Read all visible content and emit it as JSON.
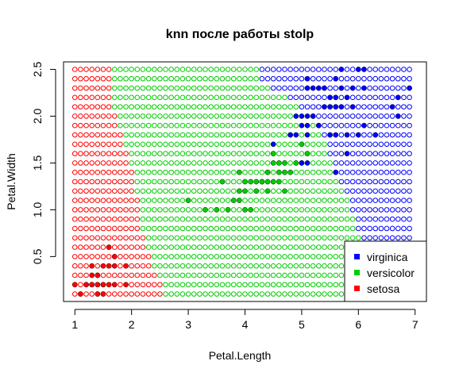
{
  "chart_data": {
    "type": "scatter",
    "title": "knn после работы stolp",
    "xlabel": "Petal.Length",
    "ylabel": "Petal.Width",
    "xlim": [
      0.8,
      7.2
    ],
    "ylim": [
      0.02,
      2.58
    ],
    "x_ticks": [
      1,
      2,
      3,
      4,
      5,
      6,
      7
    ],
    "y_ticks": [
      0.5,
      1.0,
      1.5,
      2.0,
      2.5
    ],
    "x_tick_labels": [
      "1",
      "2",
      "3",
      "4",
      "5",
      "6",
      "7"
    ],
    "y_tick_labels": [
      "0.5",
      "1.0",
      "1.5",
      "2.0",
      "2.5"
    ],
    "grid": false,
    "legend_position": "bottom-right",
    "colors": {
      "setosa": "#ff0000",
      "versicolor": "#00cd00",
      "virginica": "#0000ff"
    },
    "legend": [
      {
        "label": "virginica",
        "color": "#0000ff"
      },
      {
        "label": "versicolor",
        "color": "#00cd00"
      },
      {
        "label": "setosa",
        "color": "#ff0000"
      }
    ],
    "classification_grid": {
      "x_start": 1.0,
      "x_end": 6.9,
      "x_step": 0.1,
      "y_start": 0.1,
      "y_end": 2.5,
      "y_step": 0.1,
      "boundary_setosa_versicolor": [
        {
          "y": 0.1,
          "x": 2.6
        },
        {
          "y": 0.2,
          "x": 2.6
        },
        {
          "y": 0.3,
          "x": 2.5
        },
        {
          "y": 0.4,
          "x": 2.4
        },
        {
          "y": 0.5,
          "x": 2.4
        },
        {
          "y": 0.6,
          "x": 2.3
        },
        {
          "y": 0.7,
          "x": 2.3
        },
        {
          "y": 0.8,
          "x": 2.2
        },
        {
          "y": 0.9,
          "x": 2.2
        },
        {
          "y": 1.0,
          "x": 2.2
        },
        {
          "y": 1.1,
          "x": 2.2
        },
        {
          "y": 1.2,
          "x": 2.1
        },
        {
          "y": 1.3,
          "x": 2.1
        },
        {
          "y": 1.4,
          "x": 2.1
        },
        {
          "y": 1.5,
          "x": 2.0
        },
        {
          "y": 1.6,
          "x": 2.0
        },
        {
          "y": 1.7,
          "x": 1.9
        },
        {
          "y": 1.8,
          "x": 1.9
        },
        {
          "y": 1.9,
          "x": 1.8
        },
        {
          "y": 2.0,
          "x": 1.8
        },
        {
          "y": 2.1,
          "x": 1.7
        },
        {
          "y": 2.2,
          "x": 1.7
        },
        {
          "y": 2.3,
          "x": 1.7
        },
        {
          "y": 2.4,
          "x": 1.7
        },
        {
          "y": 2.5,
          "x": 1.7
        }
      ],
      "boundary_versicolor_virginica": [
        {
          "y": 0.1,
          "x": 6.1
        },
        {
          "y": 0.2,
          "x": 6.1
        },
        {
          "y": 0.3,
          "x": 6.1
        },
        {
          "y": 0.4,
          "x": 6.1
        },
        {
          "y": 0.5,
          "x": 6.1
        },
        {
          "y": 0.6,
          "x": 6.1
        },
        {
          "y": 0.7,
          "x": 6.1
        },
        {
          "y": 0.8,
          "x": 6.0
        },
        {
          "y": 0.9,
          "x": 6.0
        },
        {
          "y": 1.0,
          "x": 5.9
        },
        {
          "y": 1.1,
          "x": 5.9
        },
        {
          "y": 1.2,
          "x": 5.8
        },
        {
          "y": 1.3,
          "x": 5.7
        },
        {
          "y": 1.4,
          "x": 5.6
        },
        {
          "y": 1.5,
          "x": 5.6
        },
        {
          "y": 1.6,
          "x": 5.5
        },
        {
          "y": 1.7,
          "x": 5.5
        },
        {
          "y": 1.8,
          "x": 5.4
        },
        {
          "y": 1.9,
          "x": 5.3
        },
        {
          "y": 2.0,
          "x": 5.2
        },
        {
          "y": 2.1,
          "x": 5.0
        },
        {
          "y": 2.2,
          "x": 4.8
        },
        {
          "y": 2.3,
          "x": 4.5
        },
        {
          "y": 2.4,
          "x": 4.3
        },
        {
          "y": 2.5,
          "x": 4.3
        }
      ]
    },
    "series": [
      {
        "name": "setosa",
        "points": [
          [
            1.0,
            0.2
          ],
          [
            1.1,
            0.1
          ],
          [
            1.2,
            0.2
          ],
          [
            1.3,
            0.2
          ],
          [
            1.4,
            0.2
          ],
          [
            1.5,
            0.2
          ],
          [
            1.6,
            0.2
          ],
          [
            1.3,
            0.3
          ],
          [
            1.4,
            0.3
          ],
          [
            1.5,
            0.1
          ],
          [
            1.4,
            0.1
          ],
          [
            1.7,
            0.2
          ],
          [
            1.5,
            0.4
          ],
          [
            1.6,
            0.4
          ],
          [
            1.7,
            0.4
          ],
          [
            1.3,
            0.4
          ],
          [
            1.6,
            0.6
          ],
          [
            1.7,
            0.5
          ],
          [
            1.9,
            0.2
          ],
          [
            1.9,
            0.4
          ],
          [
            1.2,
            0.2
          ],
          [
            1.3,
            0.2
          ],
          [
            1.4,
            0.2
          ],
          [
            1.5,
            0.2
          ],
          [
            1.4,
            0.3
          ]
        ]
      },
      {
        "name": "versicolor",
        "points": [
          [
            3.0,
            1.1
          ],
          [
            3.3,
            1.0
          ],
          [
            3.5,
            1.0
          ],
          [
            3.6,
            1.3
          ],
          [
            3.7,
            1.0
          ],
          [
            3.8,
            1.1
          ],
          [
            3.9,
            1.1
          ],
          [
            3.9,
            1.2
          ],
          [
            3.9,
            1.4
          ],
          [
            4.0,
            1.0
          ],
          [
            4.0,
            1.2
          ],
          [
            4.0,
            1.3
          ],
          [
            4.1,
            1.0
          ],
          [
            4.1,
            1.3
          ],
          [
            4.2,
            1.2
          ],
          [
            4.2,
            1.3
          ],
          [
            4.3,
            1.3
          ],
          [
            4.4,
            1.2
          ],
          [
            4.4,
            1.3
          ],
          [
            4.4,
            1.4
          ],
          [
            4.5,
            1.3
          ],
          [
            4.5,
            1.5
          ],
          [
            4.6,
            1.3
          ],
          [
            4.6,
            1.4
          ],
          [
            4.6,
            1.5
          ],
          [
            4.7,
            1.4
          ],
          [
            4.7,
            1.5
          ],
          [
            4.8,
            1.4
          ],
          [
            4.8,
            1.8
          ],
          [
            4.9,
            1.5
          ],
          [
            5.0,
            1.7
          ],
          [
            5.1,
            1.6
          ],
          [
            4.5,
            1.6
          ],
          [
            4.3,
            1.3
          ],
          [
            4.4,
            1.4
          ],
          [
            4.7,
            1.2
          ]
        ]
      },
      {
        "name": "virginica",
        "points": [
          [
            4.5,
            1.7
          ],
          [
            4.8,
            1.8
          ],
          [
            4.9,
            1.8
          ],
          [
            4.9,
            2.0
          ],
          [
            5.0,
            1.5
          ],
          [
            5.0,
            1.9
          ],
          [
            5.0,
            2.0
          ],
          [
            5.1,
            1.5
          ],
          [
            5.1,
            1.8
          ],
          [
            5.1,
            1.9
          ],
          [
            5.1,
            2.0
          ],
          [
            5.1,
            2.3
          ],
          [
            5.1,
            2.4
          ],
          [
            5.2,
            2.0
          ],
          [
            5.2,
            2.3
          ],
          [
            5.3,
            1.9
          ],
          [
            5.3,
            2.3
          ],
          [
            5.4,
            2.1
          ],
          [
            5.4,
            2.3
          ],
          [
            5.5,
            1.8
          ],
          [
            5.5,
            2.1
          ],
          [
            5.5,
            2.2
          ],
          [
            5.6,
            1.4
          ],
          [
            5.6,
            1.8
          ],
          [
            5.6,
            2.1
          ],
          [
            5.6,
            2.2
          ],
          [
            5.6,
            2.4
          ],
          [
            5.7,
            2.1
          ],
          [
            5.7,
            2.3
          ],
          [
            5.7,
            2.5
          ],
          [
            5.8,
            1.6
          ],
          [
            5.8,
            1.8
          ],
          [
            5.8,
            2.2
          ],
          [
            5.9,
            2.1
          ],
          [
            5.9,
            2.3
          ],
          [
            6.0,
            1.8
          ],
          [
            6.0,
            2.5
          ],
          [
            6.1,
            1.9
          ],
          [
            6.1,
            2.3
          ],
          [
            6.1,
            2.5
          ],
          [
            6.3,
            1.8
          ],
          [
            6.6,
            2.1
          ],
          [
            6.7,
            2.0
          ],
          [
            6.7,
            2.2
          ],
          [
            6.9,
            2.3
          ],
          [
            5.2,
            2.0
          ],
          [
            5.3,
            1.9
          ],
          [
            5.0,
            1.5
          ]
        ]
      }
    ]
  }
}
